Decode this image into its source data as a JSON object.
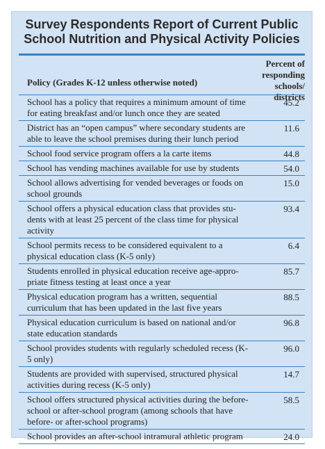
{
  "title": {
    "line1": "Survey Respondents Report of Current Public",
    "line2": "School Nutrition and Physical Activity Policies"
  },
  "header": {
    "policy": "Policy  (Grades K-12 unless otherwise noted)",
    "percent": "Percent of responding schools/ districts"
  },
  "rows": [
    {
      "policy": "School has a policy that requires a minimum amount of time for eating breakfast and/or lunch once they are seated",
      "value": "45.2"
    },
    {
      "policy": "District has an “open campus” where secondary students are able to leave the school premises during their lunch period",
      "value": "11.6"
    },
    {
      "policy": "School food service program offers a la carte items",
      "value": "44.8"
    },
    {
      "policy": "School has vending machines available for use by students",
      "value": "54.0"
    },
    {
      "policy": "School allows advertising for vended beverages or foods on school grounds",
      "value": "15.0"
    },
    {
      "policy": "School offers a physical education class that provides stu- dents with at least 25 percent of the class time for physical activity",
      "value": "93.4"
    },
    {
      "policy": "School permits recess to be considered equivalent to a physical education class (K-5 only)",
      "value": "6.4"
    },
    {
      "policy": "Students enrolled in physical education receive age-appro- priate fitness testing at least once a year",
      "value": "85.7"
    },
    {
      "policy": "Physical education program has a written, sequential curriculum that has been updated in the last five years",
      "value": "88.5"
    },
    {
      "policy": "Physical education curriculum is based on national and/or state education standards",
      "value": "96.8"
    },
    {
      "policy": "School provides students with regularly scheduled recess (K-5 only)",
      "value": "96.0"
    },
    {
      "policy": "Students are provided with supervised, structured physical activities during recess (K-5 only)",
      "value": "14.7"
    },
    {
      "policy": "School offers structured physical activities during the before-school or after-school program (among schools that have before- or after-school programs)",
      "value": "58.5"
    },
    {
      "policy": "School provides an after-school intramural athletic program",
      "value": "24.0"
    }
  ]
}
